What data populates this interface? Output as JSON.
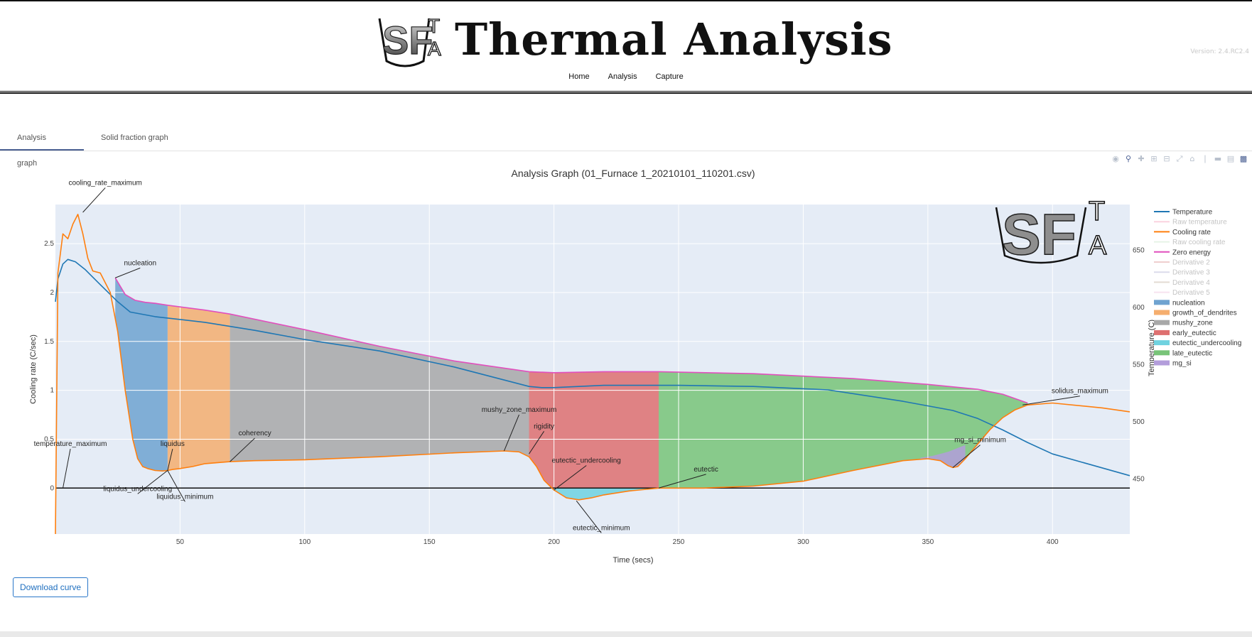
{
  "header": {
    "brand_title": "Thermal Analysis",
    "version": "Version: 2.4.RC2.4",
    "nav": [
      "Home",
      "Analysis",
      "Capture"
    ]
  },
  "logo": {
    "letters_big": "SF",
    "letter_t": "T",
    "letter_a": "A"
  },
  "tabs": {
    "items": [
      "Analysis graph",
      "Solid fraction graph"
    ],
    "active": 0
  },
  "toolbar": {
    "icons": [
      "camera-icon",
      "zoom-icon",
      "pan-icon",
      "zoom-in-icon",
      "zoom-out-icon",
      "autoscale-icon",
      "reset-axes-icon",
      "spike-lines-icon",
      "compare-hover-icon",
      "plotly-logo-icon"
    ],
    "download_label": "Download curve"
  },
  "colors": {
    "temperature": "#1f77b4",
    "raw_temperature": "#f6a6c1",
    "cooling_rate": "#ff7f0e",
    "raw_cooling_rate": "#cfe8cf",
    "zero_energy": "#e14fbd",
    "derivative2": "#e0a0a0",
    "derivative3": "#b8b8d8",
    "derivative4": "#c8b8a8",
    "derivative5": "#f0c8e0",
    "nucleation": "#6fa3d0",
    "growth_of_dendrites": "#f5ae6e",
    "mushy_zone": "#a8a8a8",
    "early_eutectic": "#de7070",
    "eutectic_undercooling": "#6fd2e0",
    "late_eutectic": "#78c478",
    "mg_si": "#b39ddb",
    "plot_bg": "#e5ecf6",
    "accent": "#4a5f92"
  },
  "chart_data": {
    "type": "line",
    "title": "Analysis Graph (01_Furnace 1_20210101_110201.csv)",
    "xlabel": "Time (secs)",
    "ylabel": "Cooling rate (C/sec)",
    "y2label": "Temperature (C)",
    "xlim": [
      0,
      431
    ],
    "ylim": [
      -0.47,
      2.9
    ],
    "y2lim": [
      402,
      690
    ],
    "xticks": [
      50,
      100,
      150,
      200,
      250,
      300,
      350,
      400
    ],
    "yticks": [
      0,
      0.5,
      1,
      1.5,
      2,
      2.5
    ],
    "y2ticks": [
      450,
      500,
      550,
      600,
      650
    ],
    "grid": true,
    "legend_placement": "right",
    "series": [
      {
        "name": "Temperature",
        "axis": "y2",
        "key": "temperature",
        "x": [
          0,
          1,
          3,
          5,
          8,
          12,
          18,
          25,
          30,
          40,
          60,
          80,
          100,
          130,
          160,
          190,
          195,
          200,
          220,
          250,
          280,
          310,
          340,
          360,
          370,
          380,
          390,
          400,
          431
        ],
        "y": [
          605,
          625,
          638,
          642,
          640,
          633,
          620,
          605,
          596,
          592,
          587,
          580,
          572,
          562,
          548,
          531,
          530,
          530,
          532,
          532,
          531,
          528,
          518,
          510,
          503,
          493,
          482,
          472,
          453
        ]
      },
      {
        "name": "Raw temperature",
        "axis": "y2",
        "key": "raw_temperature",
        "hidden": true,
        "x": [],
        "y": []
      },
      {
        "name": "Cooling rate",
        "axis": "y",
        "key": "cooling_rate",
        "x": [
          0,
          1,
          3,
          5,
          7,
          9,
          11,
          13,
          15,
          18,
          22,
          25,
          28,
          31,
          33,
          35,
          37,
          40,
          43,
          45,
          47,
          50,
          55,
          60,
          70,
          80,
          100,
          130,
          160,
          180,
          186,
          190,
          193,
          196,
          200,
          205,
          210,
          215,
          220,
          230,
          242,
          260,
          280,
          300,
          320,
          340,
          350,
          355,
          358,
          360,
          362,
          365,
          370,
          375,
          380,
          385,
          390,
          400,
          420,
          431
        ],
        "y": [
          -0.47,
          2.2,
          2.6,
          2.55,
          2.7,
          2.8,
          2.6,
          2.35,
          2.22,
          2.2,
          2.0,
          1.6,
          1.0,
          0.5,
          0.3,
          0.22,
          0.2,
          0.18,
          0.175,
          0.18,
          0.19,
          0.2,
          0.22,
          0.25,
          0.27,
          0.28,
          0.29,
          0.32,
          0.36,
          0.38,
          0.37,
          0.32,
          0.22,
          0.08,
          -0.02,
          -0.1,
          -0.12,
          -0.1,
          -0.07,
          -0.03,
          0.0,
          0.0,
          0.02,
          0.07,
          0.18,
          0.28,
          0.3,
          0.28,
          0.23,
          0.21,
          0.22,
          0.3,
          0.45,
          0.6,
          0.72,
          0.8,
          0.85,
          0.87,
          0.82,
          0.78
        ]
      },
      {
        "name": "Raw cooling rate",
        "axis": "y",
        "key": "raw_cooling_rate",
        "hidden": true,
        "x": [],
        "y": []
      },
      {
        "name": "Zero energy",
        "axis": "y",
        "key": "zero_energy",
        "x": [
          24,
          28,
          32,
          36,
          40,
          45,
          60,
          70,
          100,
          130,
          160,
          190,
          200,
          220,
          242,
          280,
          320,
          350,
          370,
          380,
          390
        ],
        "y": [
          2.15,
          1.98,
          1.92,
          1.9,
          1.89,
          1.87,
          1.82,
          1.78,
          1.62,
          1.45,
          1.3,
          1.19,
          1.18,
          1.19,
          1.19,
          1.17,
          1.12,
          1.06,
          1.01,
          0.96,
          0.87
        ]
      },
      {
        "name": "Derivative 2",
        "axis": "y",
        "key": "derivative2",
        "hidden": true,
        "x": [],
        "y": []
      },
      {
        "name": "Derivative 3",
        "axis": "y",
        "key": "derivative3",
        "hidden": true,
        "x": [],
        "y": []
      },
      {
        "name": "Derivative 4",
        "axis": "y",
        "key": "derivative4",
        "hidden": true,
        "x": [],
        "y": []
      },
      {
        "name": "Derivative 5",
        "axis": "y",
        "key": "derivative5",
        "hidden": true,
        "x": [],
        "y": []
      }
    ],
    "regions": [
      {
        "name": "nucleation",
        "key": "nucleation",
        "x0": 24,
        "x1": 45
      },
      {
        "name": "growth_of_dendrites",
        "key": "growth_of_dendrites",
        "x0": 45,
        "x1": 70
      },
      {
        "name": "mushy_zone",
        "key": "mushy_zone",
        "x0": 70,
        "x1": 190
      },
      {
        "name": "early_eutectic",
        "key": "early_eutectic",
        "x0": 190,
        "x1": 242
      },
      {
        "name": "eutectic_undercooling",
        "key": "eutectic_undercooling",
        "x0": 200,
        "x1": 242,
        "below_zero": true
      },
      {
        "name": "late_eutectic",
        "key": "late_eutectic",
        "x0": 242,
        "x1": 390
      },
      {
        "name": "mg_si",
        "key": "mg_si",
        "x0": 347,
        "x1": 365,
        "top": [
          [
            347,
            0.31
          ],
          [
            352,
            0.33
          ],
          [
            358,
            0.37
          ],
          [
            365,
            0.44
          ]
        ]
      }
    ],
    "annotations": [
      {
        "text": "cooling_rate_maximum",
        "x": 11,
        "y": 2.82,
        "tx": 20,
        "ty": 3.1
      },
      {
        "text": "nucleation",
        "x": 24,
        "y": 2.15,
        "tx": 34,
        "ty": 2.28
      },
      {
        "text": "temperature_maximum",
        "x": 3,
        "y": 0.0,
        "tx": 6,
        "ty": 0.43
      },
      {
        "text": "liquidus",
        "x": 45,
        "y": 0.18,
        "tx": 47,
        "ty": 0.43
      },
      {
        "text": "liquidus_undercooling",
        "x": 45,
        "y": 0.18,
        "tx": 33,
        "ty": -0.03
      },
      {
        "text": "liquidus_minimum",
        "x": 45,
        "y": 0.18,
        "tx": 52,
        "ty": -0.11
      },
      {
        "text": "coherency",
        "x": 70,
        "y": 0.27,
        "tx": 80,
        "ty": 0.54
      },
      {
        "text": "mushy_zone_maximum",
        "x": 180,
        "y": 0.38,
        "tx": 186,
        "ty": 0.78
      },
      {
        "text": "rigidity",
        "x": 190,
        "y": 0.35,
        "tx": 196,
        "ty": 0.61
      },
      {
        "text": "eutectic_undercooling",
        "x": 200,
        "y": -0.02,
        "tx": 213,
        "ty": 0.26
      },
      {
        "text": "eutectic",
        "x": 242,
        "y": 0.0,
        "tx": 261,
        "ty": 0.17
      },
      {
        "text": "eutectic_minimum",
        "x": 209,
        "y": -0.13,
        "tx": 219,
        "ty": -0.43
      },
      {
        "text": "mg_si_minimum",
        "x": 360,
        "y": 0.21,
        "tx": 371,
        "ty": 0.47
      },
      {
        "text": "solidus_maximum",
        "x": 388,
        "y": 0.85,
        "tx": 411,
        "ty": 0.97
      }
    ]
  }
}
